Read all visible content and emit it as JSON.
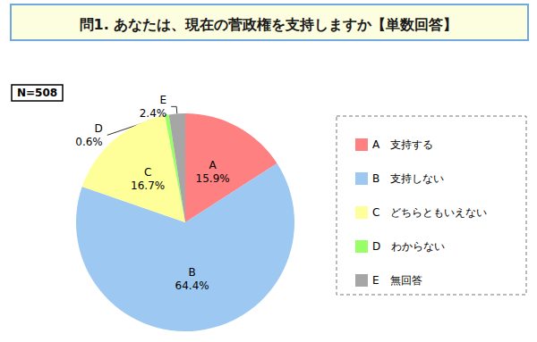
{
  "chart_data": {
    "type": "pie",
    "title": "問1. あなたは、現在の菅政権を支持しますか【単数回答】",
    "annotations": [
      "N=508"
    ],
    "categories": [
      "A",
      "B",
      "C",
      "D",
      "E"
    ],
    "legend_labels": [
      "A　支持する",
      "B　支持しない",
      "C　どちらともいえない",
      "D　わからない",
      "E　無回答"
    ],
    "values": [
      15.9,
      64.4,
      16.7,
      0.6,
      2.4
    ],
    "value_labels": [
      "15.9%",
      "64.4%",
      "16.7%",
      "0.6%",
      "2.4%"
    ],
    "colors": [
      "#ff8080",
      "#9dc8f2",
      "#ffff99",
      "#99ff66",
      "#a6a6a6"
    ],
    "data_labels": true,
    "legend": "right"
  }
}
